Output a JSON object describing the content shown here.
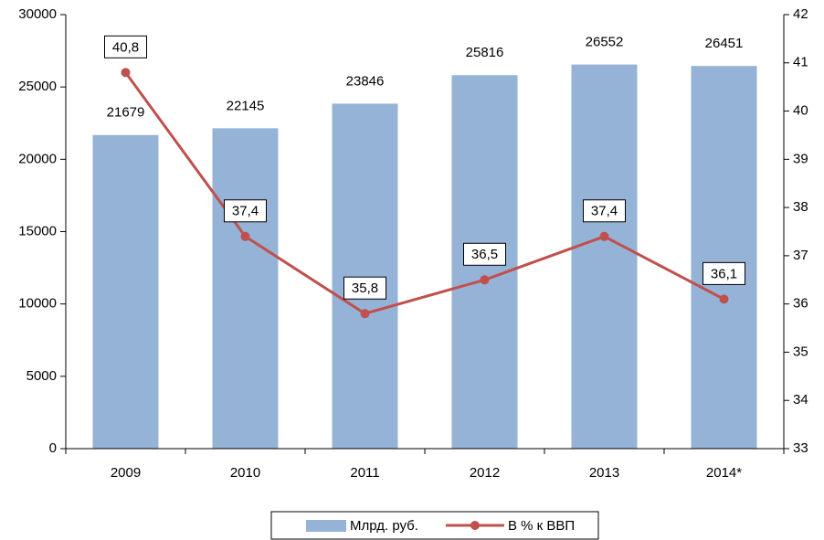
{
  "chart_data": {
    "type": "combo",
    "categories": [
      "2009",
      "2010",
      "2011",
      "2012",
      "2013",
      "2014*"
    ],
    "series": [
      {
        "name": "Млрд. руб.",
        "type": "bar",
        "color": "#95b3d7",
        "values": [
          21679,
          22145,
          23846,
          25816,
          26552,
          26451
        ]
      },
      {
        "name": "В % к ВВП",
        "type": "line",
        "axis": "y2",
        "color": "#c0504d",
        "values": [
          40.8,
          37.4,
          35.8,
          36.5,
          37.4,
          36.1
        ],
        "value_labels": [
          "40,8",
          "37,4",
          "35,8",
          "36,5",
          "37,4",
          "36,1"
        ]
      }
    ],
    "ylim": [
      0,
      30000
    ],
    "yticks": [
      0,
      5000,
      10000,
      15000,
      20000,
      25000,
      30000
    ],
    "y2lim": [
      33,
      42
    ],
    "y2ticks": [
      33,
      34,
      35,
      36,
      37,
      38,
      39,
      40,
      41,
      42
    ],
    "legend": "bottom"
  }
}
